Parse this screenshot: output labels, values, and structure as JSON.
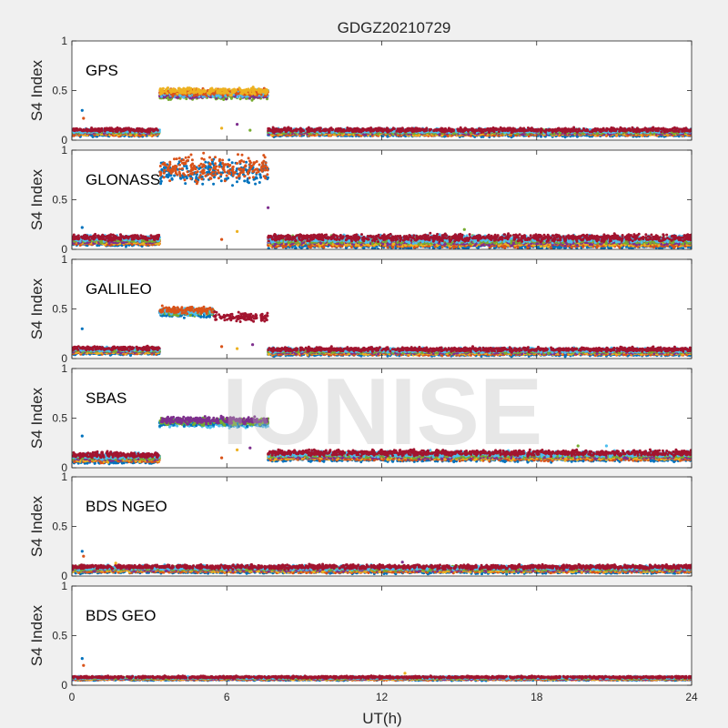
{
  "chart_data": {
    "type": "scatter",
    "title": "GDGZ20210729",
    "xlabel": "UT(h)",
    "xlim": [
      0,
      24
    ],
    "xticks": [
      0,
      6,
      12,
      18,
      24
    ],
    "watermark": "IONISE",
    "series_colors": [
      "#0072BD",
      "#D95319",
      "#EDB120",
      "#7E2F8E",
      "#77AC30",
      "#4DBEEE",
      "#A2142F"
    ],
    "panels": [
      {
        "name": "GPS",
        "ylabel": "S4 Index",
        "ylim": [
          0,
          1
        ],
        "yticks": [
          "0",
          "0.5",
          "1"
        ],
        "segments": [
          {
            "x": [
              0,
              3.4
            ],
            "baseline": 0.08,
            "spread": 0.03
          },
          {
            "x": [
              3.4,
              7.6
            ],
            "baseline": 0.47,
            "spread": 0.05,
            "colors": [
              4,
              3,
              5,
              1,
              2
            ]
          },
          {
            "x": [
              7.6,
              24
            ],
            "baseline": 0.08,
            "spread": 0.03
          }
        ],
        "spikes": [
          {
            "x": 0.4,
            "y": 0.3
          },
          {
            "x": 0.45,
            "y": 0.22
          },
          {
            "x": 5.8,
            "y": 0.12
          },
          {
            "x": 6.4,
            "y": 0.16
          },
          {
            "x": 6.9,
            "y": 0.1
          }
        ]
      },
      {
        "name": "GLONASS",
        "ylabel": "S4 Index",
        "ylim": [
          0,
          1
        ],
        "yticks": [
          "0",
          "0.5",
          "1"
        ],
        "segments": [
          {
            "x": [
              0,
              3.4
            ],
            "baseline": 0.09,
            "spread": 0.04
          },
          {
            "x": [
              3.4,
              7.6
            ],
            "baseline": 0.8,
            "spread": 0.17,
            "colors": [
              0,
              1
            ]
          },
          {
            "x": [
              7.6,
              24
            ],
            "baseline": 0.08,
            "spread": 0.05
          }
        ],
        "spikes": [
          {
            "x": 0.4,
            "y": 0.22
          },
          {
            "x": 5.8,
            "y": 0.1
          },
          {
            "x": 6.4,
            "y": 0.18
          },
          {
            "x": 7.6,
            "y": 0.42
          },
          {
            "x": 15.2,
            "y": 0.2
          }
        ]
      },
      {
        "name": "GALILEO",
        "ylabel": "S4 Index",
        "ylim": [
          0,
          1
        ],
        "yticks": [
          "0",
          "0.5",
          "1"
        ],
        "segments": [
          {
            "x": [
              0,
              3.4
            ],
            "baseline": 0.08,
            "spread": 0.03
          },
          {
            "x": [
              3.4,
              5.5
            ],
            "baseline": 0.47,
            "spread": 0.05,
            "colors": [
              0,
              4,
              5,
              1
            ]
          },
          {
            "x": [
              5.5,
              7.6
            ],
            "baseline": 0.42,
            "spread": 0.06,
            "colors": [
              6
            ]
          },
          {
            "x": [
              7.6,
              24
            ],
            "baseline": 0.07,
            "spread": 0.03
          }
        ],
        "spikes": [
          {
            "x": 0.4,
            "y": 0.3
          },
          {
            "x": 5.8,
            "y": 0.12
          },
          {
            "x": 6.4,
            "y": 0.1
          },
          {
            "x": 7.0,
            "y": 0.14
          }
        ]
      },
      {
        "name": "SBAS",
        "ylabel": "S4 Index",
        "ylim": [
          0,
          1
        ],
        "yticks": [
          "0",
          "0.5",
          "1"
        ],
        "segments": [
          {
            "x": [
              0,
              3.4
            ],
            "baseline": 0.1,
            "spread": 0.04
          },
          {
            "x": [
              3.4,
              7.6
            ],
            "baseline": 0.46,
            "spread": 0.05,
            "colors": [
              5,
              0,
              4,
              3
            ]
          },
          {
            "x": [
              7.6,
              24
            ],
            "baseline": 0.12,
            "spread": 0.04
          }
        ],
        "spikes": [
          {
            "x": 0.4,
            "y": 0.32
          },
          {
            "x": 5.8,
            "y": 0.1
          },
          {
            "x": 6.4,
            "y": 0.18
          },
          {
            "x": 6.9,
            "y": 0.2
          },
          {
            "x": 19.6,
            "y": 0.22
          },
          {
            "x": 20.7,
            "y": 0.22
          }
        ]
      },
      {
        "name": "BDS NGEO",
        "ylabel": "S4 Index",
        "ylim": [
          0,
          1
        ],
        "yticks": [
          "0",
          "0.5",
          "1"
        ],
        "segments": [
          {
            "x": [
              0,
              24
            ],
            "baseline": 0.07,
            "spread": 0.03
          }
        ],
        "spikes": [
          {
            "x": 0.4,
            "y": 0.25
          },
          {
            "x": 0.45,
            "y": 0.2
          },
          {
            "x": 1.7,
            "y": 0.13
          },
          {
            "x": 12.8,
            "y": 0.14
          }
        ]
      },
      {
        "name": "BDS GEO",
        "ylabel": "S4 Index",
        "ylim": [
          0,
          1
        ],
        "yticks": [
          "0",
          "0.5",
          "1"
        ],
        "segments": [
          {
            "x": [
              0,
              24
            ],
            "baseline": 0.07,
            "spread": 0.015
          }
        ],
        "spikes": [
          {
            "x": 0.4,
            "y": 0.27
          },
          {
            "x": 0.45,
            "y": 0.2
          },
          {
            "x": 12.9,
            "y": 0.12
          }
        ]
      }
    ]
  }
}
